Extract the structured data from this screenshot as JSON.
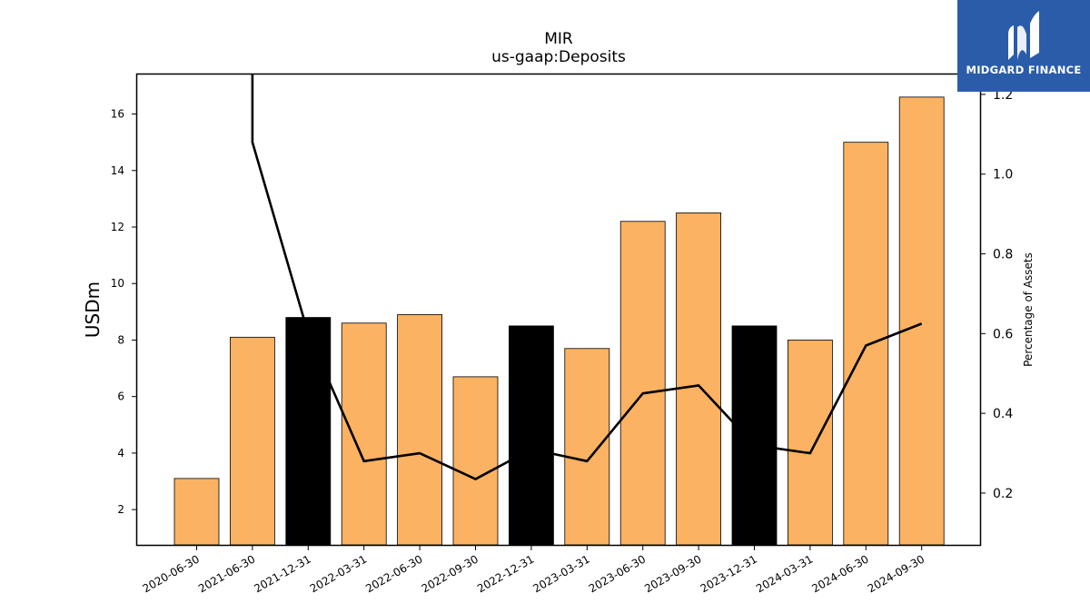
{
  "logo": {
    "text": "MIDGARD FINANCE",
    "icon": "midgard-logo-icon",
    "color": "#2a5caa"
  },
  "chart_data": {
    "type": "bar",
    "title": "MIR",
    "subtitle": "us-gaap:Deposits",
    "ylabel": "USDm",
    "y2label": "Percentage of Assets",
    "categories": [
      "2020-06-30",
      "2021-06-30",
      "2021-12-31",
      "2022-03-31",
      "2022-06-30",
      "2022-09-30",
      "2022-12-31",
      "2023-03-31",
      "2023-06-30",
      "2023-09-30",
      "2023-12-31",
      "2024-03-31",
      "2024-06-30",
      "2024-09-30"
    ],
    "series": [
      {
        "type": "bar",
        "axis": "left",
        "values": [
          3.1,
          8.1,
          8.8,
          8.6,
          8.9,
          6.7,
          8.5,
          7.7,
          12.2,
          12.5,
          8.5,
          8.0,
          15.0,
          16.6
        ],
        "colors": [
          "#fbb262",
          "#fbb262",
          "#000000",
          "#fbb262",
          "#fbb262",
          "#fbb262",
          "#000000",
          "#fbb262",
          "#fbb262",
          "#fbb262",
          "#000000",
          "#fbb262",
          "#fbb262",
          "#fbb262"
        ]
      },
      {
        "type": "line",
        "axis": "right",
        "color": "#000000",
        "values": [
          null,
          1.08,
          0.6,
          0.28,
          0.3,
          0.235,
          0.31,
          0.28,
          0.45,
          0.47,
          0.32,
          0.3,
          0.57,
          0.625
        ],
        "offscale_value": 1.4
      }
    ],
    "ylim": [
      0.75,
      17.4
    ],
    "y2lim": [
      0.07,
      1.25
    ],
    "yticks": [
      2,
      4,
      6,
      8,
      10,
      12,
      14,
      16
    ],
    "y2ticks": [
      0.2,
      0.4,
      0.6,
      0.8,
      1.0,
      1.2
    ],
    "grid": false
  }
}
